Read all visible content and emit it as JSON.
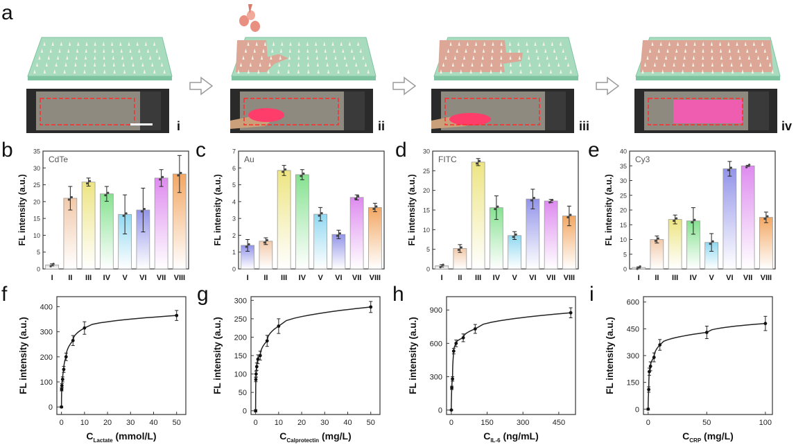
{
  "panel_letters": [
    "a",
    "b",
    "c",
    "d",
    "e",
    "f",
    "g",
    "h",
    "i"
  ],
  "step_labels": [
    "i",
    "ii",
    "iii",
    "iv"
  ],
  "colors": {
    "chip_green": "#a9dcbf",
    "chip_edge": "#7fc4a0",
    "coating": "#dca796",
    "spike": "#f4f1e8",
    "roi": "#ff2a2a",
    "bar_stroke": "#9a9a9a",
    "axis": "#333333"
  },
  "chart_data": [
    {
      "id": "b",
      "type": "bar",
      "inset_label": "CdTe",
      "ylabel": "FL intensity (a.u.)",
      "ylim": [
        0,
        35
      ],
      "yticks": [
        0,
        5,
        10,
        15,
        20,
        25,
        30,
        35
      ],
      "categories": [
        "I",
        "II",
        "III",
        "IV",
        "V",
        "VI",
        "VII",
        "VIII"
      ],
      "values": [
        1.2,
        21,
        25.8,
        22.3,
        16.2,
        17.5,
        27,
        28.2
      ],
      "errors": [
        0.3,
        3.5,
        1.2,
        2.2,
        5.8,
        6.5,
        2.5,
        5.5
      ],
      "bar_colors": [
        "#d8d8d8",
        "#f1c6a5",
        "#ece37a",
        "#7fe08a",
        "#8ad6f0",
        "#8d8ee8",
        "#dc84ee",
        "#f2a25a"
      ]
    },
    {
      "id": "c",
      "type": "bar",
      "inset_label": "Au",
      "ylabel": "FL intensity (a.u.)",
      "ylim": [
        0,
        7
      ],
      "yticks": [
        0,
        1,
        2,
        3,
        4,
        5,
        6,
        7
      ],
      "categories": [
        "I",
        "II",
        "III",
        "IV",
        "V",
        "VI",
        "VII",
        "VIII"
      ],
      "values": [
        1.4,
        1.65,
        5.85,
        5.6,
        3.25,
        2.05,
        4.25,
        3.65
      ],
      "errors": [
        0.35,
        0.2,
        0.3,
        0.3,
        0.4,
        0.25,
        0.15,
        0.25
      ],
      "bar_colors": [
        "#8d8ee8",
        "#f1c6a5",
        "#ece37a",
        "#7fe08a",
        "#8ad6f0",
        "#8d8ee8",
        "#dc84ee",
        "#f2a25a"
      ]
    },
    {
      "id": "d",
      "type": "bar",
      "inset_label": "FITC",
      "ylabel": "FL intensity (a.u.)",
      "ylim": [
        0,
        30
      ],
      "yticks": [
        0,
        5,
        10,
        15,
        20,
        25,
        30
      ],
      "categories": [
        "I",
        "II",
        "III",
        "IV",
        "V",
        "VI",
        "VII",
        "VIII"
      ],
      "values": [
        0.8,
        5.2,
        27.2,
        15.6,
        8.5,
        17.8,
        17.3,
        13.5
      ],
      "errors": [
        0.3,
        1.0,
        0.9,
        3.0,
        1.0,
        2.5,
        0.4,
        2.5
      ],
      "bar_colors": [
        "#d8d8d8",
        "#f1c6a5",
        "#ece37a",
        "#7fe08a",
        "#8ad6f0",
        "#8d8ee8",
        "#dc84ee",
        "#f2a25a"
      ]
    },
    {
      "id": "e",
      "type": "bar",
      "inset_label": "Cy3",
      "ylabel": "FL intensity (a.u.)",
      "ylim": [
        0,
        40
      ],
      "yticks": [
        0,
        5,
        10,
        15,
        20,
        25,
        30,
        35,
        40
      ],
      "categories": [
        "I",
        "II",
        "III",
        "IV",
        "V",
        "VI",
        "VII",
        "VIII"
      ],
      "values": [
        0.5,
        10,
        16.8,
        16.3,
        9,
        34,
        35,
        17.5
      ],
      "errors": [
        0.2,
        1.2,
        1.5,
        4.5,
        3.0,
        2.5,
        0.2,
        1.8
      ],
      "bar_colors": [
        "#d8d8d8",
        "#f1c6a5",
        "#ece37a",
        "#7fe08a",
        "#8ad6f0",
        "#8d8ee8",
        "#dc84ee",
        "#f2a25a"
      ]
    },
    {
      "id": "f",
      "type": "scatter",
      "ylabel": "FL intensity (a.u.)",
      "xlabel_main": "C",
      "xlabel_sub": "Lactate",
      "xlabel_unit": "(mmol/L)",
      "xlim": [
        -2,
        54
      ],
      "ylim": [
        -30,
        440
      ],
      "xticks": [
        0,
        10,
        20,
        30,
        40,
        50
      ],
      "yticks": [
        0,
        100,
        200,
        300,
        400
      ],
      "x": [
        0,
        0.1,
        0.2,
        0.5,
        1,
        2,
        5,
        10,
        50
      ],
      "y": [
        0,
        70,
        85,
        110,
        150,
        200,
        265,
        315,
        365
      ],
      "errors": [
        3,
        6,
        8,
        10,
        12,
        15,
        20,
        25,
        20
      ],
      "fit": "log"
    },
    {
      "id": "g",
      "type": "scatter",
      "ylabel": "FL intensity (a.u.)",
      "xlabel_main": "C",
      "xlabel_sub": "Calprotectin",
      "xlabel_unit": "(mg/L)",
      "xlim": [
        -2,
        54
      ],
      "ylim": [
        -10,
        310
      ],
      "xticks": [
        0,
        10,
        20,
        30,
        40,
        50
      ],
      "yticks": [
        0,
        50,
        100,
        150,
        200,
        250,
        300
      ],
      "x": [
        0,
        0.1,
        0.2,
        0.5,
        1,
        2,
        5,
        10,
        50
      ],
      "y": [
        0,
        85,
        100,
        120,
        140,
        150,
        190,
        230,
        282
      ],
      "errors": [
        3,
        6,
        8,
        10,
        12,
        12,
        15,
        20,
        15
      ],
      "fit": "log"
    },
    {
      "id": "h",
      "type": "scatter",
      "ylabel": "FL intensity (a.u.)",
      "xlabel_main": "C",
      "xlabel_sub": "IL-6",
      "xlabel_unit": "(ng/mL)",
      "xlim": [
        -20,
        520
      ],
      "ylim": [
        -40,
        1020
      ],
      "xticks": [
        0,
        150,
        300,
        450
      ],
      "yticks": [
        0,
        300,
        600,
        900
      ],
      "x": [
        0,
        2,
        5,
        10,
        20,
        50,
        100,
        500
      ],
      "y": [
        0,
        200,
        280,
        530,
        600,
        650,
        730,
        875
      ],
      "errors": [
        5,
        15,
        20,
        25,
        30,
        35,
        40,
        45
      ],
      "fit": "log"
    },
    {
      "id": "i",
      "type": "scatter",
      "ylabel": "FL intensity (a.u.)",
      "xlabel_main": "C",
      "xlabel_sub": "CRP",
      "xlabel_unit": "(mg/L)",
      "xlim": [
        -4,
        106
      ],
      "ylim": [
        -30,
        630
      ],
      "xticks": [
        0,
        50,
        100
      ],
      "yticks": [
        0,
        150,
        300,
        450,
        600
      ],
      "x": [
        0,
        0.5,
        1,
        2,
        5,
        10,
        50,
        100
      ],
      "y": [
        0,
        110,
        210,
        240,
        290,
        360,
        430,
        480
      ],
      "errors": [
        5,
        15,
        20,
        25,
        25,
        30,
        35,
        40
      ],
      "fit": "log"
    }
  ]
}
